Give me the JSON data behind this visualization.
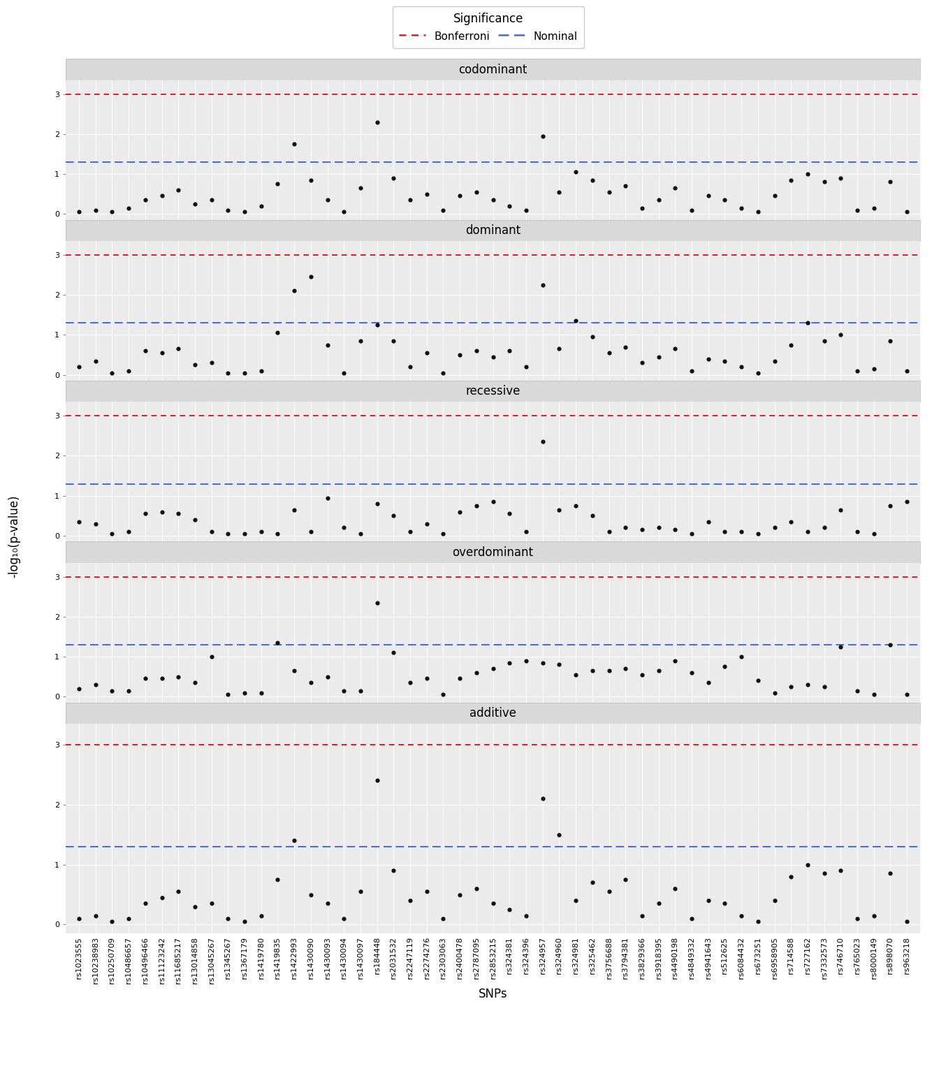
{
  "snps": [
    "rs1023555",
    "rs10238983",
    "rs10250709",
    "rs10486657",
    "rs10496466",
    "rs11123242",
    "rs11685217",
    "rs13014858",
    "rs13045267",
    "rs1345267",
    "rs1367179",
    "rs1419780",
    "rs1419835",
    "rs1422993",
    "rs1430090",
    "rs1430093",
    "rs1430094",
    "rs1430097",
    "rs184448",
    "rs2031532",
    "rs2247119",
    "rs2274276",
    "rs2303063",
    "rs2400478",
    "rs2787095",
    "rs2853215",
    "rs324381",
    "rs324396",
    "rs324957",
    "rs324960",
    "rs324981",
    "rs325462",
    "rs3756688",
    "rs3794381",
    "rs3829366",
    "rs3918395",
    "rs4490198",
    "rs4849332",
    "rs4941643",
    "rs512625",
    "rs6084432",
    "rs673251",
    "rs6958905",
    "rs714588",
    "rs727162",
    "rs7332573",
    "rs746710",
    "rs765023",
    "rs8000149",
    "rs898070",
    "rs963218"
  ],
  "models": [
    "codominant",
    "dominant",
    "recessive",
    "overdominant",
    "additive"
  ],
  "bonferroni": 3.0,
  "nominal": 1.3,
  "codominant": [
    0.05,
    0.1,
    0.05,
    0.15,
    0.35,
    0.45,
    0.6,
    0.25,
    0.35,
    0.1,
    0.05,
    0.2,
    0.75,
    1.75,
    0.85,
    0.35,
    0.05,
    0.65,
    2.3,
    0.9,
    0.35,
    0.5,
    0.1,
    0.45,
    0.55,
    0.35,
    0.2,
    0.1,
    1.95,
    0.55,
    1.05,
    0.85,
    0.55,
    0.7,
    0.15,
    0.35,
    0.65,
    0.1,
    0.45,
    0.35,
    0.15,
    0.05,
    0.45,
    0.85,
    1.0,
    0.8,
    0.9,
    0.1,
    0.15,
    0.8,
    0.05
  ],
  "dominant": [
    0.2,
    0.35,
    0.05,
    0.1,
    0.6,
    0.55,
    0.65,
    0.25,
    0.3,
    0.05,
    0.05,
    0.1,
    1.05,
    2.1,
    2.45,
    0.75,
    0.05,
    0.85,
    1.25,
    0.85,
    0.2,
    0.55,
    0.05,
    0.5,
    0.6,
    0.45,
    0.6,
    0.2,
    2.25,
    0.65,
    1.35,
    0.95,
    0.55,
    0.7,
    0.3,
    0.45,
    0.65,
    0.1,
    0.4,
    0.35,
    0.2,
    0.05,
    0.35,
    0.75,
    1.3,
    0.85,
    1.0,
    0.1,
    0.15,
    0.85,
    0.1
  ],
  "recessive": [
    0.35,
    0.3,
    0.05,
    0.1,
    0.55,
    0.6,
    0.55,
    0.4,
    0.1,
    0.05,
    0.05,
    0.1,
    0.05,
    0.65,
    0.1,
    0.95,
    0.2,
    0.05,
    0.8,
    0.5,
    0.1,
    0.3,
    0.05,
    0.6,
    0.75,
    0.85,
    0.55,
    0.1,
    2.35,
    0.65,
    0.75,
    0.5,
    0.1,
    0.2,
    0.15,
    0.2,
    0.15,
    0.05,
    0.35,
    0.1,
    0.1,
    0.05,
    0.2,
    0.35,
    0.1,
    0.2,
    0.65,
    0.1,
    0.05,
    0.75,
    0.85
  ],
  "overdominant": [
    0.2,
    0.3,
    0.15,
    0.15,
    0.45,
    0.45,
    0.5,
    0.35,
    1.0,
    0.05,
    0.1,
    0.1,
    1.35,
    0.65,
    0.35,
    0.5,
    0.15,
    0.15,
    2.35,
    1.1,
    0.35,
    0.45,
    0.05,
    0.45,
    0.6,
    0.7,
    0.85,
    0.9,
    0.85,
    0.8,
    0.55,
    0.65,
    0.65,
    0.7,
    0.55,
    0.65,
    0.9,
    0.6,
    0.35,
    0.75,
    1.0,
    0.4,
    0.1,
    0.25,
    0.3,
    0.25,
    1.25,
    0.15,
    0.05,
    1.3,
    0.05
  ],
  "additive": [
    0.1,
    0.15,
    0.05,
    0.1,
    0.35,
    0.45,
    0.55,
    0.3,
    0.35,
    0.1,
    0.05,
    0.15,
    0.75,
    1.4,
    0.5,
    0.35,
    0.1,
    0.55,
    2.4,
    0.9,
    0.4,
    0.55,
    0.1,
    0.5,
    0.6,
    0.35,
    0.25,
    0.15,
    2.1,
    1.5,
    0.4,
    0.7,
    0.55,
    0.75,
    0.15,
    0.35,
    0.6,
    0.1,
    0.4,
    0.35,
    0.15,
    0.05,
    0.4,
    0.8,
    1.0,
    0.85,
    0.9,
    0.1,
    0.15,
    0.85,
    0.05
  ],
  "strip_bg": "#d9d9d9",
  "plot_bg": "#ebebeb",
  "grid_color": "#ffffff",
  "dot_color": "#111111",
  "bonferroni_color": "#e41a1c",
  "nominal_color": "#4169e1",
  "dot_size": 20,
  "bonferroni_lw": 1.4,
  "nominal_lw": 1.4,
  "title_fontsize": 12,
  "tick_fontsize": 8,
  "label_fontsize": 12,
  "legend_fontsize": 11,
  "legend_title_fontsize": 12,
  "ylabel": "-log₁₀(p-value)",
  "xlabel": "SNPs",
  "ylim": [
    -0.15,
    3.35
  ],
  "yticks": [
    0,
    1,
    2,
    3
  ]
}
